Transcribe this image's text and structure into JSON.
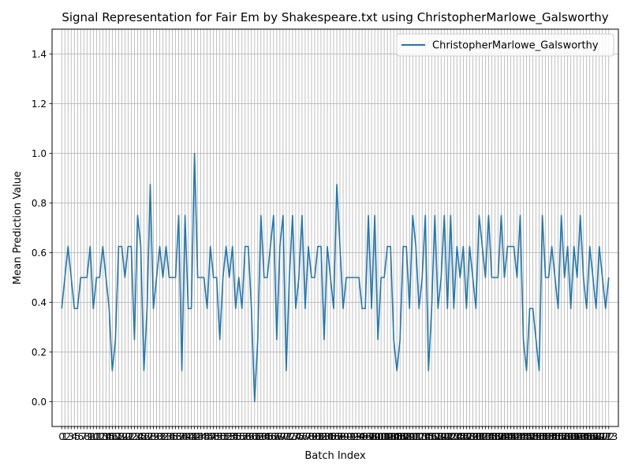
{
  "chart_data": {
    "type": "line",
    "title": "Signal Representation for Fair Em by Shakespeare.txt using ChristopherMarlowe_Galsworthy",
    "xlabel": "Batch Index",
    "ylabel": "Mean Prediction Value",
    "ylim": [
      -0.1,
      1.5
    ],
    "xlim": [
      -3.05,
      176.05
    ],
    "yticks": [
      0.0,
      0.2,
      0.4,
      0.6,
      0.8,
      1.0,
      1.2,
      1.4
    ],
    "ytick_labels": [
      "0.0",
      "0.2",
      "0.4",
      "0.6",
      "0.8",
      "1.0",
      "1.2",
      "1.4"
    ],
    "grid": true,
    "legend_position": "top-right",
    "series": [
      {
        "name": "ChristopherMarlowe_Galsworthy",
        "color": "#1f77b4",
        "x": [
          0,
          1,
          2,
          3,
          4,
          5,
          6,
          7,
          8,
          9,
          10,
          11,
          12,
          13,
          14,
          15,
          16,
          17,
          18,
          19,
          20,
          21,
          22,
          23,
          24,
          25,
          26,
          27,
          28,
          29,
          30,
          31,
          32,
          33,
          34,
          35,
          36,
          37,
          38,
          39,
          40,
          41,
          42,
          43,
          44,
          45,
          46,
          47,
          48,
          49,
          50,
          51,
          52,
          53,
          54,
          55,
          56,
          57,
          58,
          59,
          60,
          61,
          62,
          63,
          64,
          65,
          66,
          67,
          68,
          69,
          70,
          71,
          72,
          73,
          74,
          75,
          76,
          77,
          78,
          79,
          80,
          81,
          82,
          83,
          84,
          85,
          86,
          87,
          88,
          89,
          90,
          91,
          92,
          93,
          94,
          95,
          96,
          97,
          98,
          99,
          100,
          101,
          102,
          103,
          104,
          105,
          106,
          107,
          108,
          109,
          110,
          111,
          112,
          113,
          114,
          115,
          116,
          117,
          118,
          119,
          120,
          121,
          122,
          123,
          124,
          125,
          126,
          127,
          128,
          129,
          130,
          131,
          132,
          133,
          134,
          135,
          136,
          137,
          138,
          139,
          140,
          141,
          142,
          143,
          144,
          145,
          146,
          147,
          148,
          149,
          150,
          151,
          152,
          153,
          154,
          155,
          156,
          157,
          158,
          159,
          160,
          161,
          162,
          163,
          164,
          165,
          166,
          167,
          168,
          169,
          170,
          171,
          172,
          173
        ],
        "values": [
          0.375,
          0.5,
          0.625,
          0.5,
          0.375,
          0.375,
          0.5,
          0.5,
          0.5,
          0.625,
          0.375,
          0.5,
          0.5,
          0.625,
          0.5,
          0.375,
          0.125,
          0.25,
          0.625,
          0.625,
          0.5,
          0.625,
          0.625,
          0.25,
          0.75,
          0.625,
          0.125,
          0.375,
          0.875,
          0.375,
          0.5,
          0.625,
          0.5,
          0.625,
          0.5,
          0.5,
          0.5,
          0.75,
          0.125,
          0.75,
          0.375,
          0.375,
          1.0,
          0.5,
          0.5,
          0.5,
          0.375,
          0.625,
          0.5,
          0.5,
          0.25,
          0.5,
          0.625,
          0.5,
          0.625,
          0.375,
          0.5,
          0.375,
          0.625,
          0.625,
          0.375,
          0.0,
          0.25,
          0.75,
          0.5,
          0.5,
          0.625,
          0.75,
          0.25,
          0.625,
          0.75,
          0.125,
          0.5,
          0.75,
          0.375,
          0.5,
          0.75,
          0.375,
          0.625,
          0.5,
          0.5,
          0.625,
          0.625,
          0.25,
          0.625,
          0.5,
          0.375,
          0.875,
          0.625,
          0.375,
          0.5,
          0.5,
          0.5,
          0.5,
          0.5,
          0.375,
          0.375,
          0.75,
          0.375,
          0.75,
          0.25,
          0.5,
          0.5,
          0.625,
          0.625,
          0.25,
          0.125,
          0.25,
          0.625,
          0.625,
          0.375,
          0.75,
          0.625,
          0.375,
          0.5,
          0.75,
          0.125,
          0.375,
          0.75,
          0.375,
          0.5,
          0.75,
          0.375,
          0.75,
          0.375,
          0.625,
          0.5,
          0.625,
          0.375,
          0.625,
          0.5,
          0.375,
          0.75,
          0.625,
          0.5,
          0.75,
          0.5,
          0.5,
          0.5,
          0.75,
          0.5,
          0.625,
          0.625,
          0.625,
          0.5,
          0.75,
          0.25,
          0.125,
          0.375,
          0.375,
          0.25,
          0.125,
          0.75,
          0.5,
          0.5,
          0.625,
          0.5,
          0.375,
          0.75,
          0.5,
          0.625,
          0.375,
          0.625,
          0.5,
          0.75,
          0.5,
          0.375,
          0.625,
          0.5,
          0.375,
          0.625,
          0.5,
          0.375,
          0.5
        ]
      }
    ]
  }
}
